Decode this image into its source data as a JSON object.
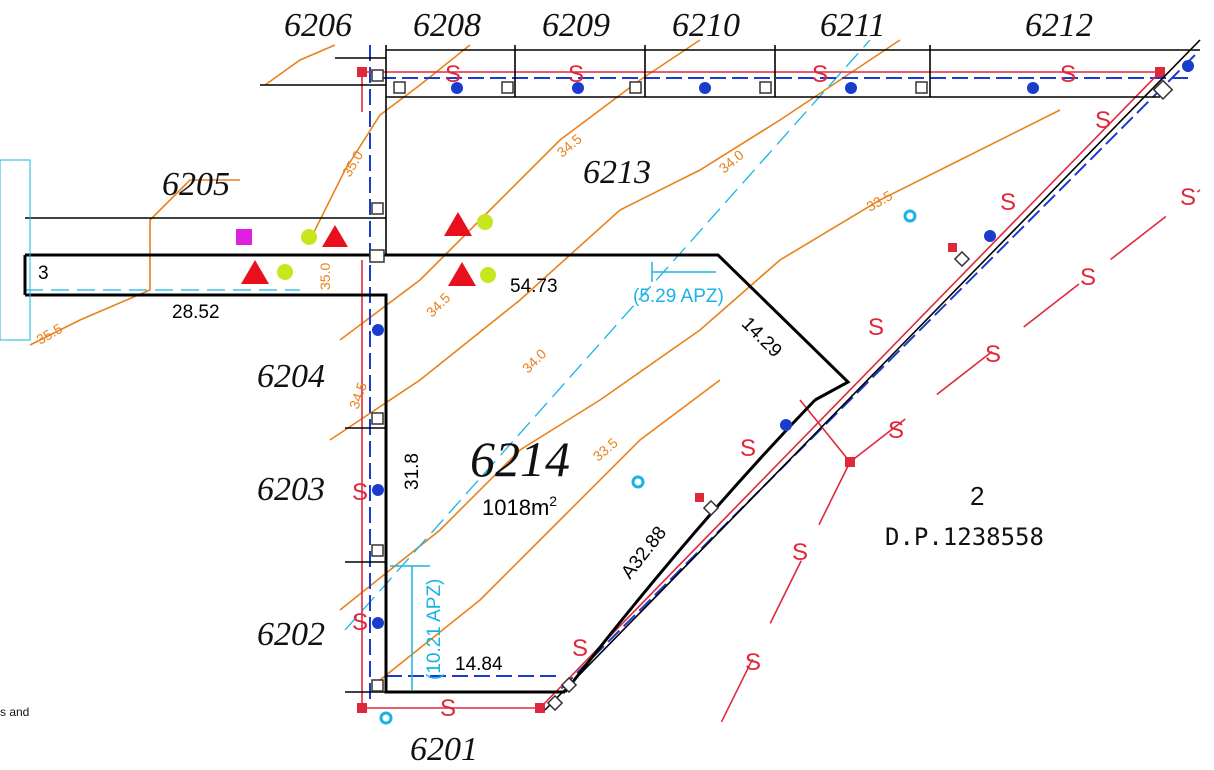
{
  "lots": [
    "6206",
    "6208",
    "6209",
    "6210",
    "6211",
    "6212",
    "6205",
    "6213",
    "6204",
    "6203",
    "6202",
    "6201"
  ],
  "main_lot": {
    "label": "6214",
    "area": "1018m",
    "area_unit_power": "2"
  },
  "dimensions": {
    "frontage": "54.73",
    "road": "28.52",
    "splay": "14.29",
    "side": "31.8",
    "arc": "A32.88",
    "rear": "14.84",
    "road_id": "3"
  },
  "apz": {
    "upper": "(5.29 APZ)",
    "lower": "(10.21 APZ)"
  },
  "contours": {
    "c355": "35.5",
    "c350": "35.0",
    "c345": "34.5",
    "c340": "34.0",
    "c335": "33.5"
  },
  "adjacent": {
    "lot": "2",
    "plan": "D.P.1238558"
  },
  "sewer_symbol": "S",
  "note": "s and"
}
